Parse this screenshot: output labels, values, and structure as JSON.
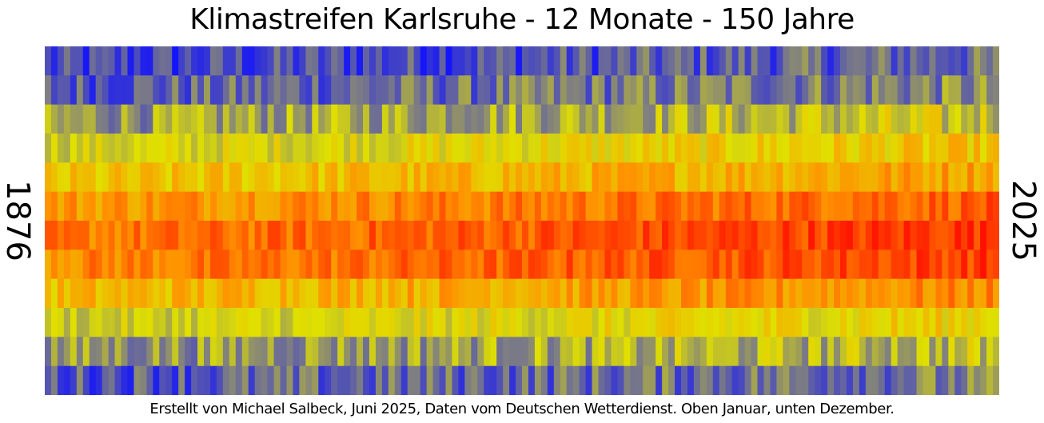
{
  "title": "Klimastreifen Karlsruhe - 12 Monate - 150 Jahre",
  "caption": "Erstellt von Michael Salbeck, Juni 2025, Daten vom Deutschen Wetterdienst. Oben Januar, unten Dezember.",
  "colors": {
    "cold": "#1010ff",
    "neutral": "#808080",
    "mild": "#e0e000",
    "warm": "#ff9000",
    "hot": "#ff1000"
  },
  "chart_data": {
    "type": "heatmap",
    "title": "Klimastreifen Karlsruhe - 12 Monate - 150 Jahre",
    "x_start_label": "1876",
    "x_end_label": "2025",
    "year_start": 1876,
    "year_end": 2025,
    "rows": 12,
    "columns": 150,
    "row_order": "Oben Januar, unten Dezember",
    "row_mean_levels": [
      0.18,
      0.26,
      0.42,
      0.56,
      0.66,
      0.79,
      0.86,
      0.84,
      0.7,
      0.54,
      0.4,
      0.24
    ],
    "trend_per_row": [
      0.12,
      0.12,
      0.13,
      0.12,
      0.12,
      0.13,
      0.15,
      0.15,
      0.12,
      0.11,
      0.11,
      0.1
    ],
    "level_scale": "0 = cold (blue), 0.3 = grey, 0.55 = yellow, 0.75 = orange, 1 = red"
  }
}
